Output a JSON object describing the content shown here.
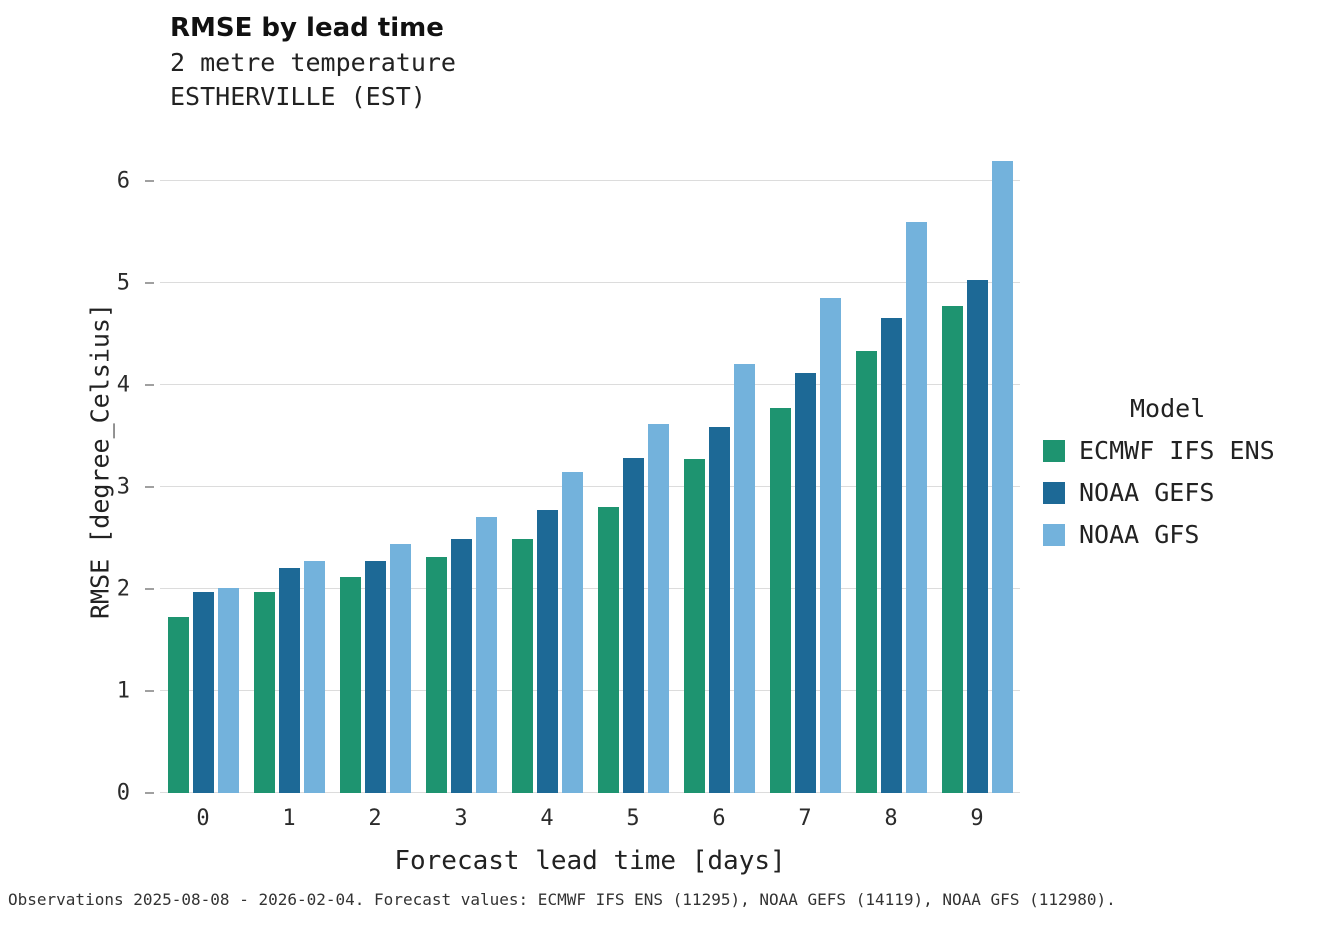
{
  "title": "RMSE by lead time",
  "subtitle_line1": "2 metre temperature",
  "subtitle_line2": "ESTHERVILLE (EST)",
  "footer": "Observations 2025-08-08 - 2026-02-04. Forecast values: ECMWF IFS ENS (11295), NOAA GEFS (14119), NOAA GFS (112980).",
  "legend": {
    "title": "Model"
  },
  "colors": {
    "ecmwf_ifs_ens": "#1e9470",
    "noaa_gefs": "#1d6996",
    "noaa_gfs": "#73b2dc",
    "gridline": "#dcdcdc"
  },
  "chart_data": {
    "type": "bar",
    "title": "RMSE by lead time",
    "subtitle": [
      "2 metre temperature",
      "ESTHERVILLE (EST)"
    ],
    "xlabel": "Forecast lead time [days]",
    "ylabel": "RMSE [degree_Celsius]",
    "categories": [
      "0",
      "1",
      "2",
      "3",
      "4",
      "5",
      "6",
      "7",
      "8",
      "9"
    ],
    "series": [
      {
        "name": "ECMWF IFS ENS",
        "color": "#1e9470",
        "values": [
          1.73,
          1.97,
          2.12,
          2.31,
          2.49,
          2.8,
          3.27,
          3.77,
          4.33,
          4.77
        ]
      },
      {
        "name": "NOAA GEFS",
        "color": "#1d6996",
        "values": [
          1.97,
          2.21,
          2.27,
          2.49,
          2.77,
          3.28,
          3.59,
          4.12,
          4.66,
          5.03
        ]
      },
      {
        "name": "NOAA GFS",
        "color": "#73b2dc",
        "values": [
          2.01,
          2.27,
          2.44,
          2.71,
          3.15,
          3.62,
          4.21,
          4.85,
          5.6,
          6.2
        ]
      }
    ],
    "ylim": [
      0,
      6.5
    ],
    "yticks": [
      0,
      1,
      2,
      3,
      4,
      5,
      6
    ],
    "grid": true,
    "legend_title": "Model",
    "legend_position": "right"
  }
}
